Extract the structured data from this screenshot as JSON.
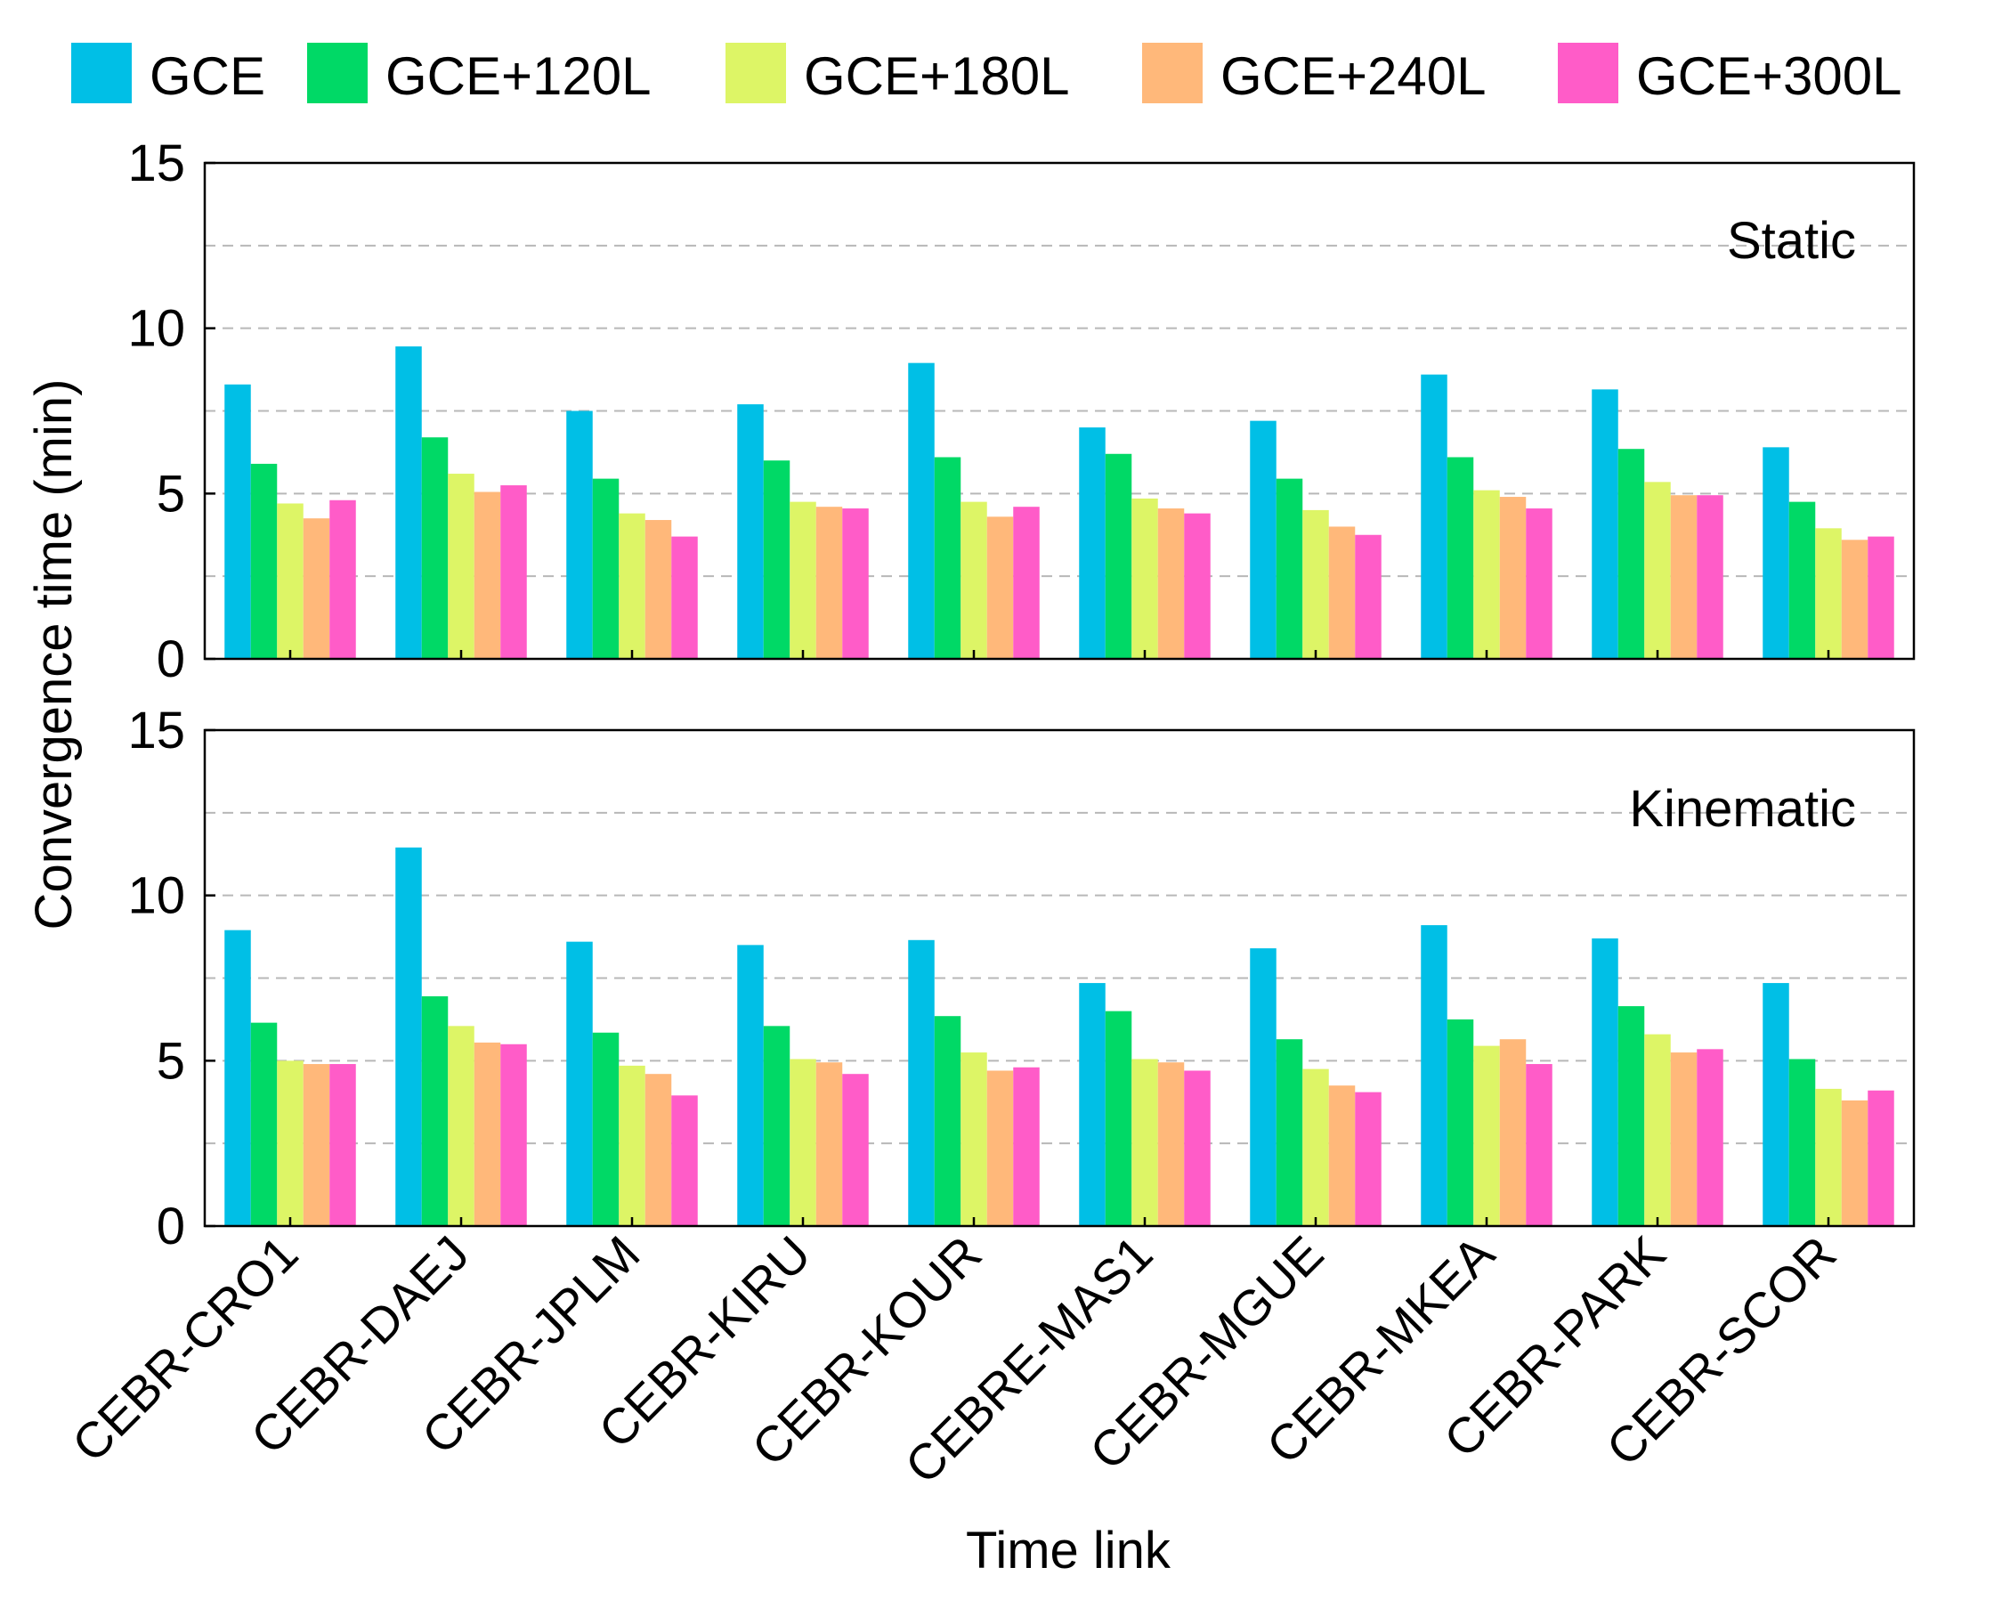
{
  "chart_data": {
    "type": "bar",
    "ylabel": "Convergence time (min)",
    "xlabel": "Time link",
    "ylim": [
      0,
      15
    ],
    "yticks": [
      0,
      5,
      10,
      15
    ],
    "grid": "horizontal dashed",
    "legend_placement": "top",
    "categories": [
      "CEBR-CRO1",
      "CEBR-DAEJ",
      "CEBR-JPLM",
      "CEBR-KIRU",
      "CEBR-KOUR",
      "CEBRE-MAS1",
      "CEBR-MGUE",
      "CEBR-MKEA",
      "CEBR-PARK",
      "CEBR-SCOR"
    ],
    "legend": [
      {
        "name": "GCE",
        "color": "#00BFE6"
      },
      {
        "name": "GCE+120L",
        "color": "#00D966"
      },
      {
        "name": "GCE+180L",
        "color": "#DDF566"
      },
      {
        "name": "GCE+240L",
        "color": "#FFB87A"
      },
      {
        "name": "GCE+300L",
        "color": "#FF5CC8"
      }
    ],
    "panels": [
      {
        "label": "Static",
        "series": [
          {
            "name": "GCE",
            "values": [
              8.3,
              9.45,
              7.5,
              7.7,
              8.95,
              7.0,
              7.2,
              8.6,
              8.15,
              6.4
            ]
          },
          {
            "name": "GCE+120L",
            "values": [
              5.9,
              6.7,
              5.45,
              6.0,
              6.1,
              6.2,
              5.45,
              6.1,
              6.35,
              4.75
            ]
          },
          {
            "name": "GCE+180L",
            "values": [
              4.7,
              5.6,
              4.4,
              4.75,
              4.75,
              4.85,
              4.5,
              5.1,
              5.35,
              3.95
            ]
          },
          {
            "name": "GCE+240L",
            "values": [
              4.25,
              5.05,
              4.2,
              4.6,
              4.3,
              4.55,
              4.0,
              4.9,
              4.95,
              3.6
            ]
          },
          {
            "name": "GCE+300L",
            "values": [
              4.8,
              5.25,
              3.7,
              4.55,
              4.6,
              4.4,
              3.75,
              4.55,
              4.95,
              3.7
            ]
          }
        ]
      },
      {
        "label": "Kinematic",
        "series": [
          {
            "name": "GCE",
            "values": [
              8.95,
              11.45,
              8.6,
              8.5,
              8.65,
              7.35,
              8.4,
              9.1,
              8.7,
              7.35
            ]
          },
          {
            "name": "GCE+120L",
            "values": [
              6.15,
              6.95,
              5.85,
              6.05,
              6.35,
              6.5,
              5.65,
              6.25,
              6.65,
              5.05
            ]
          },
          {
            "name": "GCE+180L",
            "values": [
              5.0,
              6.05,
              4.85,
              5.05,
              5.25,
              5.05,
              4.75,
              5.45,
              5.8,
              4.15
            ]
          },
          {
            "name": "GCE+240L",
            "values": [
              4.9,
              5.55,
              4.6,
              4.95,
              4.7,
              4.95,
              4.25,
              5.65,
              5.25,
              3.8
            ]
          },
          {
            "name": "GCE+300L",
            "values": [
              4.9,
              5.5,
              3.95,
              4.6,
              4.8,
              4.7,
              4.05,
              4.9,
              5.35,
              4.1
            ]
          }
        ]
      }
    ]
  }
}
